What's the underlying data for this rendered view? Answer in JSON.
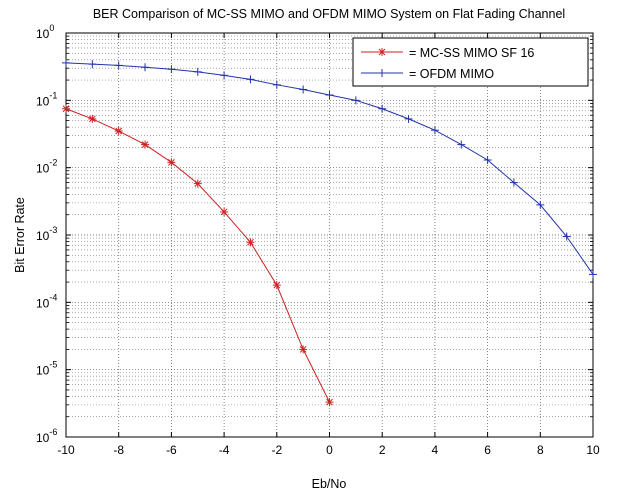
{
  "chart_data": {
    "type": "line",
    "title": "BER Comparison of MC-SS MIMO and OFDM MIMO System on Flat Fading Channel",
    "xlabel": "Eb/No",
    "ylabel": "Bit Error Rate",
    "xlim": [
      -10,
      10
    ],
    "ylim": [
      1e-06,
      1
    ],
    "yscale": "log",
    "x_ticks": [
      -10,
      -8,
      -6,
      -4,
      -2,
      0,
      2,
      4,
      6,
      8,
      10
    ],
    "y_ticks": [
      {
        "value": 1,
        "base": "10",
        "exp": "0"
      },
      {
        "value": 0.1,
        "base": "10",
        "exp": "-1"
      },
      {
        "value": 0.01,
        "base": "10",
        "exp": "-2"
      },
      {
        "value": 0.001,
        "base": "10",
        "exp": "-3"
      },
      {
        "value": 0.0001,
        "base": "10",
        "exp": "-4"
      },
      {
        "value": 1e-05,
        "base": "10",
        "exp": "-5"
      },
      {
        "value": 1e-06,
        "base": "10",
        "exp": "-6"
      }
    ],
    "grid": true,
    "legend_position": "top-right",
    "series": [
      {
        "name": "= MC-SS MIMO SF 16",
        "color": "#cc2222",
        "marker": "asterisk",
        "x": [
          -10,
          -9,
          -8,
          -7,
          -6,
          -5,
          -4,
          -3,
          -2,
          -1,
          0
        ],
        "y": [
          0.075,
          0.053,
          0.035,
          0.022,
          0.012,
          0.0058,
          0.0022,
          0.00078,
          0.00018,
          2e-05,
          3.3e-06
        ]
      },
      {
        "name": "= OFDM MIMO",
        "color": "#2233aa",
        "marker": "plus",
        "x": [
          -10,
          -9,
          -8,
          -7,
          -6,
          -5,
          -4,
          -3,
          -2,
          -1,
          0,
          1,
          2,
          3,
          4,
          5,
          6,
          7,
          8,
          9,
          10
        ],
        "y": [
          0.36,
          0.345,
          0.33,
          0.31,
          0.29,
          0.265,
          0.235,
          0.205,
          0.17,
          0.145,
          0.12,
          0.1,
          0.075,
          0.053,
          0.036,
          0.022,
          0.013,
          0.006,
          0.0028,
          0.00095,
          0.00026
        ]
      }
    ]
  }
}
